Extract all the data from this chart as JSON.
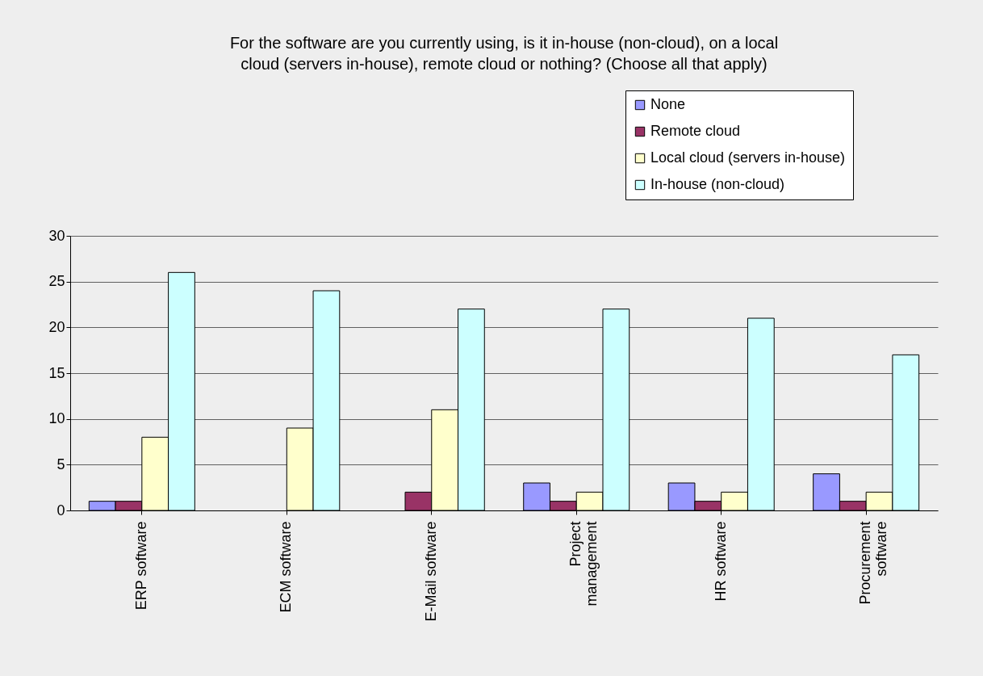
{
  "chart_data": {
    "type": "bar",
    "title": "For the software are you currently using, is it in-house (non-cloud), on a local cloud (servers in-house), remote cloud or nothing? (Choose all that apply)",
    "categories": [
      "ERP software",
      "ECM software",
      "E-Mail software",
      "Project management",
      "HR software",
      "Procurement software"
    ],
    "series": [
      {
        "name": "None",
        "color": "#9999ff",
        "values": [
          1,
          null,
          null,
          3,
          3,
          4
        ]
      },
      {
        "name": "Remote cloud",
        "color": "#993366",
        "values": [
          1,
          null,
          2,
          1,
          1,
          1
        ]
      },
      {
        "name": "Local cloud (servers in-house)",
        "color": "#ffffcc",
        "values": [
          8,
          9,
          11,
          2,
          2,
          2
        ]
      },
      {
        "name": "In-house (non-cloud)",
        "color": "#ccffff",
        "values": [
          26,
          24,
          22,
          22,
          21,
          17
        ]
      }
    ],
    "ylim": [
      0,
      30
    ],
    "yticks": [
      0,
      5,
      10,
      15,
      20,
      25,
      30
    ],
    "grid": "y",
    "legend": "top right"
  }
}
